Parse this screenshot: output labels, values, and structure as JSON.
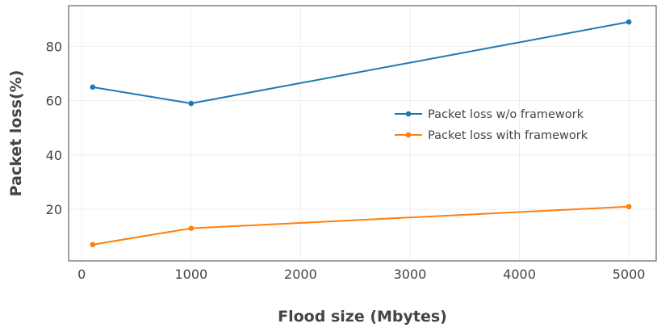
{
  "chart_data": {
    "type": "line",
    "title": "",
    "xlabel": "Flood size (Mbytes)",
    "ylabel": "Packet loss(%)",
    "xlim": [
      -120,
      5250
    ],
    "ylim": [
      1,
      95
    ],
    "xticks": [
      0,
      1000,
      2000,
      3000,
      4000,
      5000
    ],
    "yticks": [
      20,
      40,
      60,
      80
    ],
    "grid": true,
    "legend_position": "right",
    "series": [
      {
        "name": "Packet loss w/o framework",
        "color": "#1f77b4",
        "x": [
          100,
          1000,
          5000
        ],
        "y": [
          65,
          59,
          89
        ]
      },
      {
        "name": "Packet loss with framework",
        "color": "#ff7f0e",
        "x": [
          100,
          1000,
          5000
        ],
        "y": [
          7,
          13,
          21
        ]
      }
    ]
  }
}
